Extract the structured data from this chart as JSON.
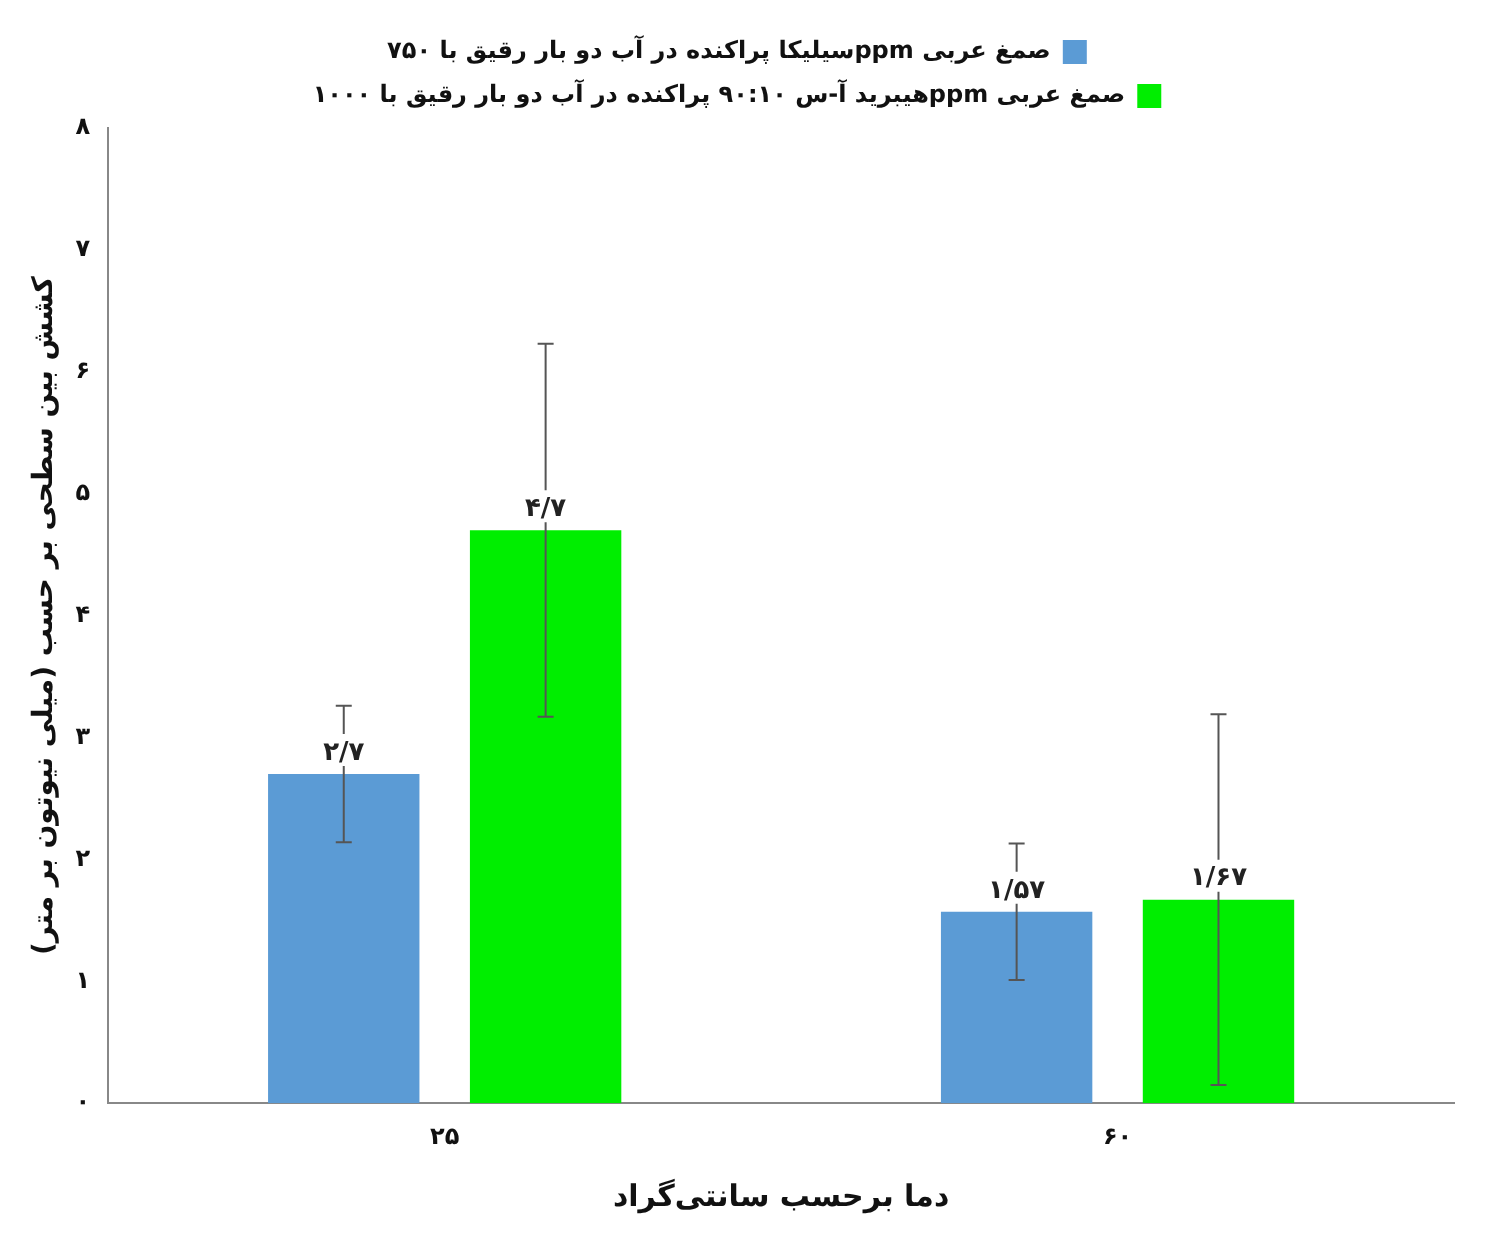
{
  "chart_data": {
    "type": "bar",
    "xlabel": "دما برحسب سانتی‌گراد",
    "ylabel": "کشش بین سطحی بر حسب (میلی نیوتون بر متر)",
    "categories": [
      "۲۵",
      "۶۰"
    ],
    "series": [
      {
        "name": "سیلیکا پراکنده در آب دو بار رقیق با ۷۵۰ppm صمغ عربی",
        "color": "#5b9bd5",
        "values": [
          2.7,
          1.57
        ],
        "errors": [
          0.56,
          0.56
        ],
        "value_labels": [
          "۲/۷",
          "۱/۵۷"
        ]
      },
      {
        "name": "هیبرید آ-س ۹۰:۱۰ پراکنده در آب دو بار رقیق با ۱۰۰۰ppm صمغ عربی",
        "color": "#00ee00",
        "values": [
          4.7,
          1.67
        ],
        "errors": [
          1.53,
          1.52
        ],
        "value_labels": [
          "۴/۷",
          "۱/۶۷"
        ]
      }
    ],
    "ylim": [
      0,
      8
    ],
    "yticks": [
      {
        "value": 0,
        "label": "۰"
      },
      {
        "value": 1,
        "label": "۱"
      },
      {
        "value": 2,
        "label": "۲"
      },
      {
        "value": 3,
        "label": "۳"
      },
      {
        "value": 4,
        "label": "۴"
      },
      {
        "value": 5,
        "label": "۵"
      },
      {
        "value": 6,
        "label": "۶"
      },
      {
        "value": 7,
        "label": "۷"
      },
      {
        "value": 8,
        "label": "۸"
      }
    ],
    "grid": false,
    "legend": "top"
  }
}
